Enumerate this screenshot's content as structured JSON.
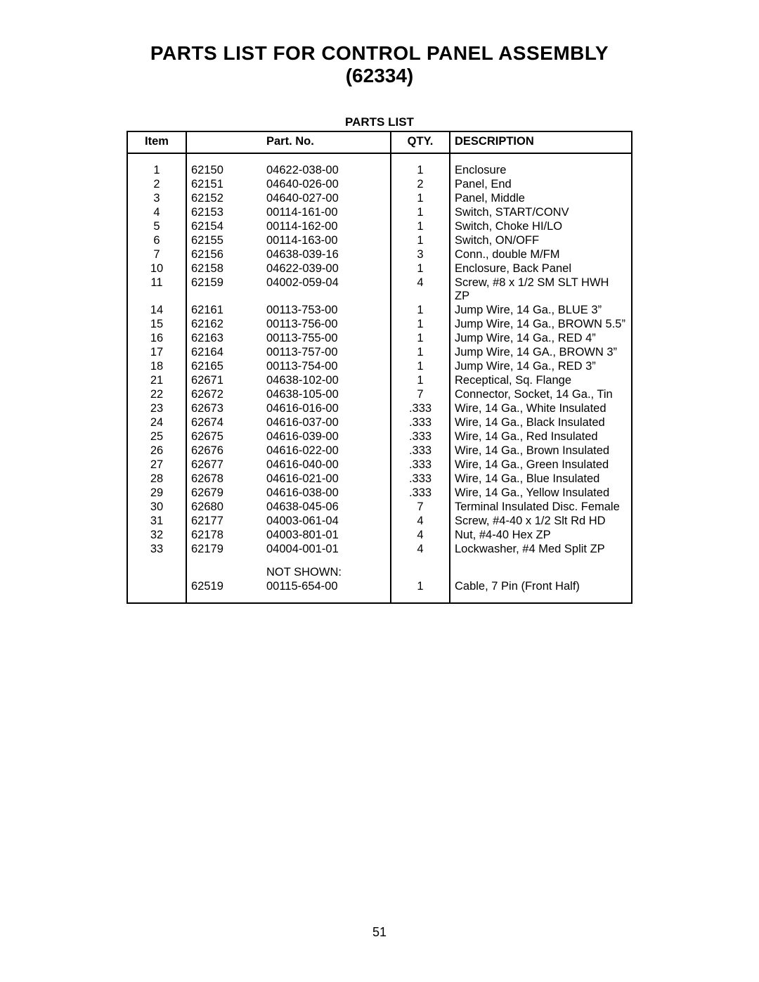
{
  "title_line1": "PARTS LIST FOR CONTROL PANEL ASSEMBLY",
  "title_line2": "(62334)",
  "table_caption": "PARTS LIST",
  "page_number": "51",
  "headers": {
    "item": "Item",
    "part_no": "Part. No.",
    "qty": "QTY.",
    "description": "DESCRIPTION"
  },
  "not_shown_label": "NOT SHOWN:",
  "rows": [
    {
      "item": "1",
      "sku": "62150",
      "part": "04622-038-00",
      "qty": "1",
      "desc": "Enclosure"
    },
    {
      "item": "2",
      "sku": "62151",
      "part": "04640-026-00",
      "qty": "2",
      "desc": "Panel, End"
    },
    {
      "item": "3",
      "sku": "62152",
      "part": "04640-027-00",
      "qty": "1",
      "desc": "Panel, Middle"
    },
    {
      "item": "4",
      "sku": "62153",
      "part": "00114-161-00",
      "qty": "1",
      "desc": "Switch, START/CONV"
    },
    {
      "item": "5",
      "sku": "62154",
      "part": "00114-162-00",
      "qty": "1",
      "desc": "Switch, Choke HI/LO"
    },
    {
      "item": "6",
      "sku": "62155",
      "part": "00114-163-00",
      "qty": "1",
      "desc": "Switch, ON/OFF"
    },
    {
      "item": "7",
      "sku": "62156",
      "part": "04638-039-16",
      "qty": "3",
      "desc": "Conn., double M/FM"
    },
    {
      "item": "10",
      "sku": "62158",
      "part": "04622-039-00",
      "qty": "1",
      "desc": "Enclosure, Back Panel"
    },
    {
      "item": "11",
      "sku": "62159",
      "part": "04002-059-04",
      "qty": "4",
      "desc": "Screw, #8 x 1/2 SM SLT HWH ZP"
    },
    {
      "item": "14",
      "sku": "62161",
      "part": "00113-753-00",
      "qty": "1",
      "desc": "Jump Wire, 14 Ga., BLUE 3”"
    },
    {
      "item": "15",
      "sku": "62162",
      "part": "00113-756-00",
      "qty": "1",
      "desc": "Jump Wire, 14 Ga., BROWN 5.5”"
    },
    {
      "item": "16",
      "sku": "62163",
      "part": "00113-755-00",
      "qty": "1",
      "desc": "Jump Wire, 14 Ga., RED 4”"
    },
    {
      "item": "17",
      "sku": "62164",
      "part": "00113-757-00",
      "qty": "1",
      "desc": "Jump Wire, 14 GA., BROWN 3”"
    },
    {
      "item": "18",
      "sku": "62165",
      "part": "00113-754-00",
      "qty": "1",
      "desc": "Jump Wire, 14 Ga., RED 3”"
    },
    {
      "item": "21",
      "sku": "62671",
      "part": "04638-102-00",
      "qty": "1",
      "desc": "Receptical, Sq. Flange"
    },
    {
      "item": "22",
      "sku": "62672",
      "part": "04638-105-00",
      "qty": "7",
      "desc": "Connector, Socket, 14 Ga., Tin"
    },
    {
      "item": "23",
      "sku": "62673",
      "part": "04616-016-00",
      "qty": ".333",
      "desc": "Wire, 14 Ga., White Insulated"
    },
    {
      "item": "24",
      "sku": "62674",
      "part": "04616-037-00",
      "qty": ".333",
      "desc": "Wire, 14 Ga., Black Insulated"
    },
    {
      "item": "25",
      "sku": "62675",
      "part": "04616-039-00",
      "qty": ".333",
      "desc": "Wire, 14 Ga., Red Insulated"
    },
    {
      "item": "26",
      "sku": "62676",
      "part": "04616-022-00",
      "qty": ".333",
      "desc": "Wire, 14 Ga., Brown Insulated"
    },
    {
      "item": "27",
      "sku": "62677",
      "part": "04616-040-00",
      "qty": ".333",
      "desc": "Wire, 14 Ga., Green Insulated"
    },
    {
      "item": "28",
      "sku": "62678",
      "part": "04616-021-00",
      "qty": ".333",
      "desc": "Wire, 14 Ga., Blue Insulated"
    },
    {
      "item": "29",
      "sku": "62679",
      "part": "04616-038-00",
      "qty": ".333",
      "desc": "Wire, 14 Ga., Yellow Insulated"
    },
    {
      "item": "30",
      "sku": "62680",
      "part": "04638-045-06",
      "qty": "7",
      "desc": "Terminal Insulated Disc. Female"
    },
    {
      "item": "31",
      "sku": "62177",
      "part": "04003-061-04",
      "qty": "4",
      "desc": "Screw, #4-40 x 1/2 Slt Rd HD"
    },
    {
      "item": "32",
      "sku": "62178",
      "part": "04003-801-01",
      "qty": "4",
      "desc": "Nut, #4-40 Hex ZP"
    },
    {
      "item": "33",
      "sku": "62179",
      "part": "04004-001-01",
      "qty": "4",
      "desc": "Lockwasher, #4 Med Split ZP"
    }
  ],
  "not_shown_rows": [
    {
      "item": "",
      "sku": "62519",
      "part": "00115-654-00",
      "qty": "1",
      "desc": "Cable, 7 Pin (Front Half)"
    }
  ]
}
